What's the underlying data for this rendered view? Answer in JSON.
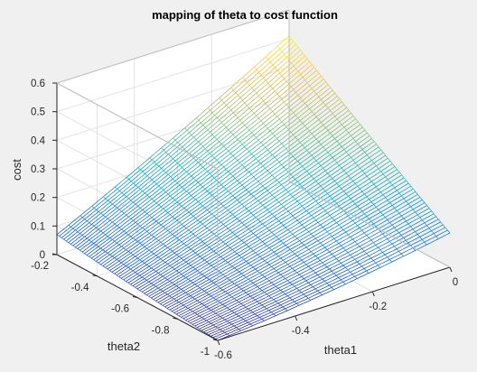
{
  "figure": {
    "background": "#f0f0f0"
  },
  "chart_data": {
    "type": "surface-mesh",
    "title": "mapping of theta to cost function",
    "xlabel": "theta1",
    "ylabel": "theta2",
    "zlabel": "cost",
    "xlim": [
      -0.6,
      0
    ],
    "ylim": [
      -1,
      -0.2
    ],
    "zlim": [
      0,
      0.6
    ],
    "xticks": [
      "-0.6",
      "-0.4",
      "-0.2",
      "0"
    ],
    "yticks": [
      "-1",
      "-0.8",
      "-0.6",
      "-0.4",
      "-0.2"
    ],
    "zticks": [
      "0",
      "0.1",
      "0.2",
      "0.3",
      "0.4",
      "0.5",
      "0.6"
    ],
    "grid": true,
    "colormap": "parula",
    "colormap_stops": [
      "#352a87",
      "#0f5cdd",
      "#1481d6",
      "#06a4ca",
      "#2eb7a4",
      "#87bf77",
      "#d1bb59",
      "#fec832",
      "#f9fb0e"
    ],
    "surface": {
      "theta1_range": [
        -0.6,
        0
      ],
      "theta2_range": [
        -1,
        -0.2
      ],
      "cost_at_corners": [
        {
          "theta1": 0,
          "theta2": -0.2,
          "cost": 0.51
        },
        {
          "theta1": -0.6,
          "theta2": -0.2,
          "cost": 0.07
        },
        {
          "theta1": 0,
          "theta2": -1,
          "cost": 0.12
        },
        {
          "theta1": -0.6,
          "theta2": -1,
          "cost": 0.0
        }
      ]
    }
  }
}
